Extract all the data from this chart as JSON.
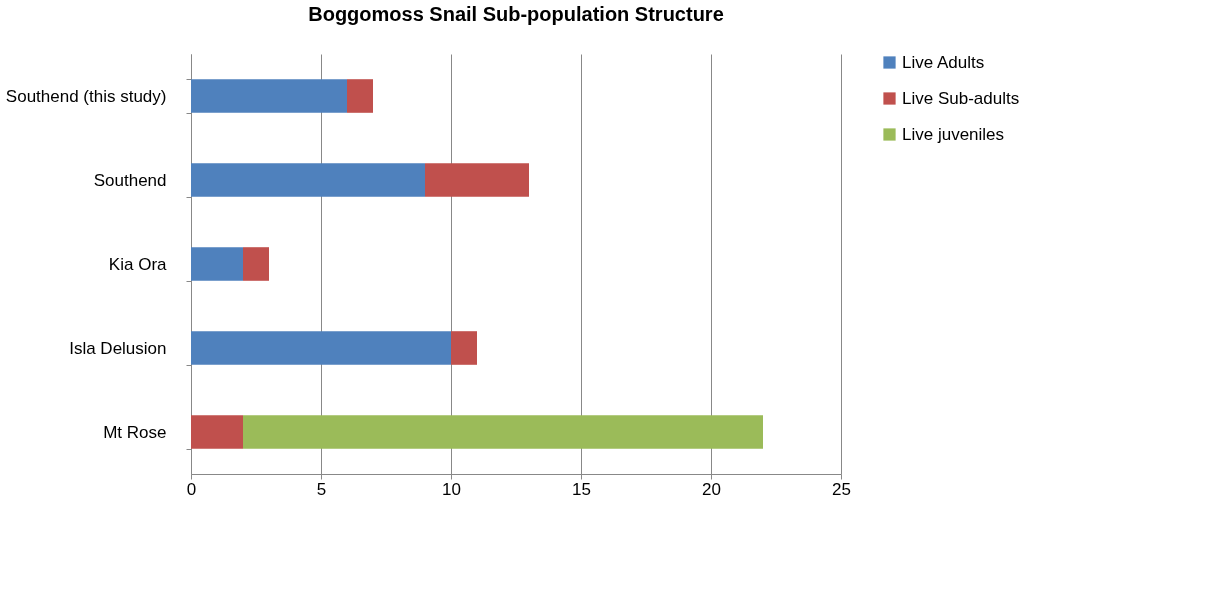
{
  "chart_data": {
    "type": "bar",
    "orientation": "horizontal",
    "stacked": true,
    "title": "Boggomoss Snail Sub-population Structure",
    "categories": [
      "Southend (this study)",
      "Southend",
      "Kia Ora",
      "Isla Delusion",
      "Mt Rose"
    ],
    "series": [
      {
        "name": "Live Adults",
        "color": "#4f81bd",
        "values": [
          6,
          9,
          2,
          10,
          0
        ]
      },
      {
        "name": "Live Sub-adults",
        "color": "#c0504d",
        "values": [
          1,
          4,
          1,
          1,
          2
        ]
      },
      {
        "name": "Live juveniles",
        "color": "#9bbb59",
        "values": [
          0,
          0,
          0,
          0,
          20
        ]
      }
    ],
    "xlim": [
      0,
      25
    ],
    "xticks": [
      0,
      5,
      10,
      15,
      20,
      25
    ],
    "grid": "x",
    "legend": "right"
  }
}
